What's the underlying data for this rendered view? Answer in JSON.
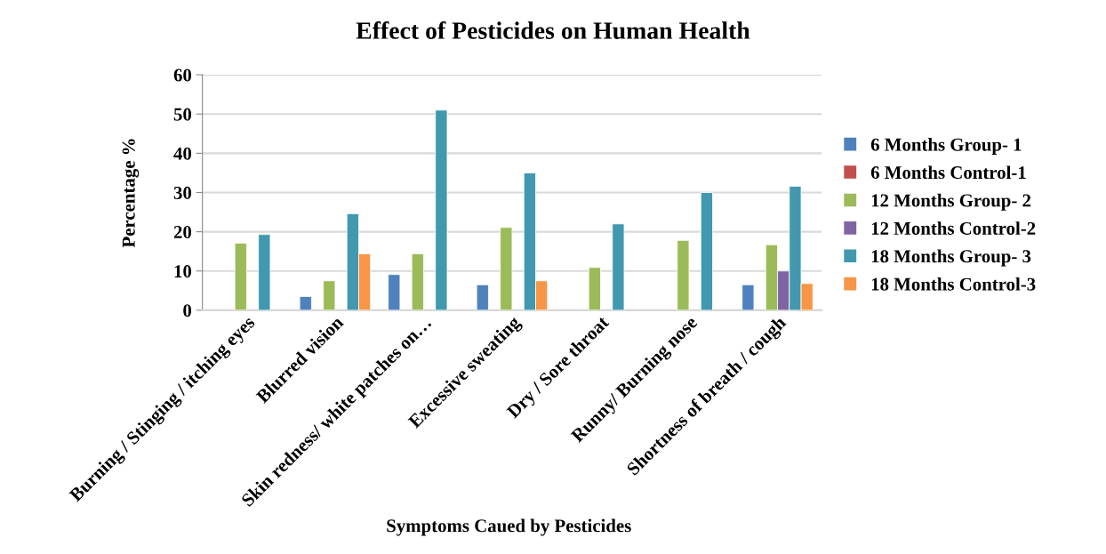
{
  "chart_data": {
    "type": "bar",
    "title": "Effect of Pesticides on Human Health",
    "xlabel": "Symptoms Caued by Pesticides",
    "ylabel": "Percentage %",
    "categories": [
      "Burning / Stinging / itching eyes",
      "Blurred vision",
      "Skin redness/ white patches on…",
      "Excessive sweating",
      "Dry / Sore throat",
      "Runny/ Burning nose",
      "Shortness of breath / cough"
    ],
    "series": [
      {
        "name": "6 Months Group- 1",
        "color": "#4f81bd",
        "values": [
          null,
          3.5,
          9.1,
          6.5,
          null,
          null,
          6.5
        ]
      },
      {
        "name": "6 Months Control-1",
        "color": "#c0504d",
        "values": [
          null,
          null,
          null,
          null,
          null,
          null,
          null
        ]
      },
      {
        "name": "12 Months Group- 2",
        "color": "#9bbb59",
        "values": [
          17.1,
          7.5,
          14.4,
          21.1,
          10.9,
          17.8,
          16.7
        ]
      },
      {
        "name": "12 Months Control-2",
        "color": "#8064a2",
        "values": [
          null,
          null,
          null,
          null,
          null,
          null,
          10
        ]
      },
      {
        "name": "18 Months Group- 3",
        "color": "#4198af",
        "values": [
          19.3,
          24.6,
          51,
          35,
          22,
          30,
          31.6
        ]
      },
      {
        "name": "18 Months Control-3",
        "color": "#f79646",
        "values": [
          null,
          14.4,
          null,
          7.5,
          null,
          null,
          6.8
        ]
      }
    ],
    "ylim": [
      0,
      60
    ],
    "yticks": [
      0,
      10,
      20,
      30,
      40,
      50,
      60
    ],
    "grid": "y",
    "legend": "right"
  }
}
